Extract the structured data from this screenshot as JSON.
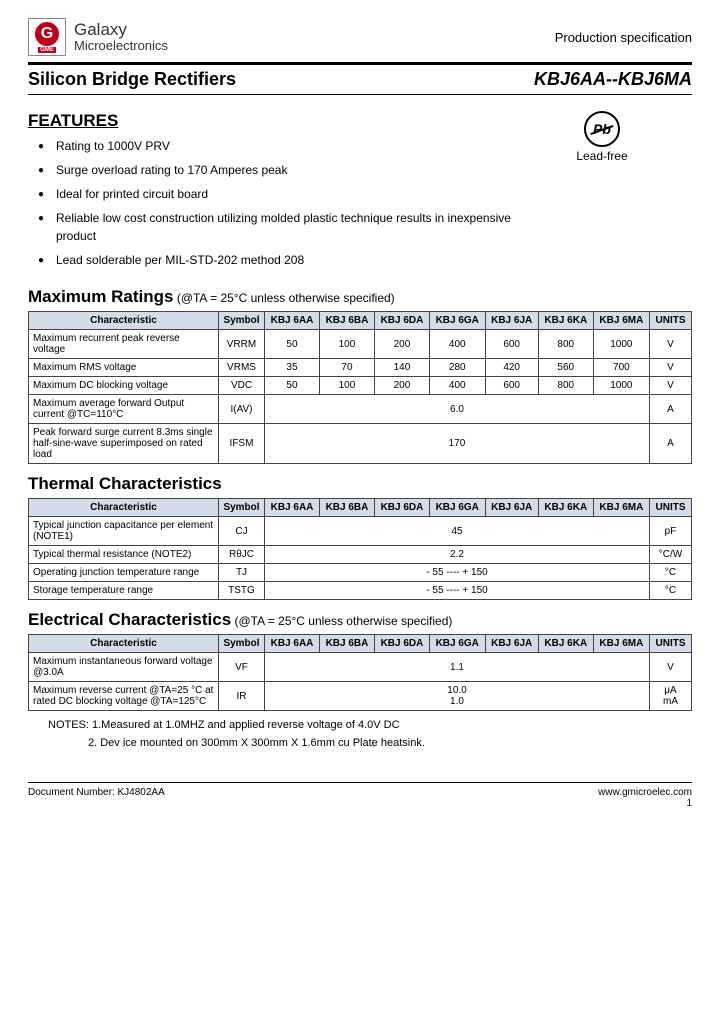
{
  "header": {
    "company_line1": "Galaxy",
    "company_line2": "Microelectronics",
    "logo_g": "G",
    "logo_sub": "GME",
    "prod_spec": "Production specification"
  },
  "title": {
    "left": "Silicon Bridge Rectifiers",
    "right": "KBJ6AA--KBJ6MA"
  },
  "features": {
    "heading": "FEATURES",
    "items": [
      "Rating to 1000V PRV",
      "Surge overload rating to 170 Amperes peak",
      "Ideal for printed circuit board",
      "Reliable low cost construction utilizing molded plastic technique results in inexpensive product",
      "Lead solderable per MIL-STD-202 method 208"
    ],
    "leadfree_label": "Lead-free",
    "pb_text": "Pb"
  },
  "maxratings": {
    "heading": "Maximum Ratings",
    "note": " (@TA = 25°C unless otherwise specified)",
    "col_char": "Characteristic",
    "col_sym": "Symbol",
    "cols": [
      "KBJ 6AA",
      "KBJ 6BA",
      "KBJ 6DA",
      "KBJ 6GA",
      "KBJ 6JA",
      "KBJ 6KA",
      "KBJ 6MA"
    ],
    "col_units": "UNITS",
    "rows": [
      {
        "char": "Maximum recurrent peak reverse voltage",
        "sym": "VRRM",
        "vals": [
          "50",
          "100",
          "200",
          "400",
          "600",
          "800",
          "1000"
        ],
        "unit": "V"
      },
      {
        "char": "Maximum RMS voltage",
        "sym": "VRMS",
        "vals": [
          "35",
          "70",
          "140",
          "280",
          "420",
          "560",
          "700"
        ],
        "unit": "V"
      },
      {
        "char": "Maximum DC blocking voltage",
        "sym": "VDC",
        "vals": [
          "50",
          "100",
          "200",
          "400",
          "600",
          "800",
          "1000"
        ],
        "unit": "V"
      },
      {
        "char": "Maximum average forward Output current @TC=110°C",
        "sym": "I(AV)",
        "span": "6.0",
        "unit": "A"
      },
      {
        "char": "Peak forward surge current 8.3ms single half-sine-wave superimposed on rated load",
        "sym": "IFSM",
        "span": "170",
        "unit": "A"
      }
    ]
  },
  "thermal": {
    "heading": "Thermal Characteristics",
    "rows": [
      {
        "char": "Typical junction capacitance per element (NOTE1)",
        "sym": "CJ",
        "span": "45",
        "unit": "pF"
      },
      {
        "char": "Typical thermal resistance (NOTE2)",
        "sym": "RθJC",
        "span": "2.2",
        "unit": "°C/W"
      },
      {
        "char": "Operating junction temperature range",
        "sym": "TJ",
        "span": "- 55 ---- + 150",
        "unit": "°C"
      },
      {
        "char": "Storage temperature range",
        "sym": "TSTG",
        "span": "- 55 ---- + 150",
        "unit": "°C"
      }
    ]
  },
  "electrical": {
    "heading": "Electrical Characteristics",
    "note": " (@TA = 25°C unless otherwise specified)",
    "rows": [
      {
        "char": "Maximum instantaneous forward voltage @3.0A",
        "sym": "VF",
        "span": "1.1",
        "unit": "V"
      },
      {
        "char": "Maximum reverse current @TA=25 °C at rated DC blocking voltage @TA=125°C",
        "sym": "IR",
        "span": "10.0",
        "unit": "μA",
        "span2": "1.0",
        "unit2": "mA"
      }
    ]
  },
  "notes": {
    "n1": "NOTES: 1.Measured at 1.0MHZ and applied reverse voltage of 4.0V DC",
    "n2": "2. Dev ice mounted on 300mm X 300mm X 1.6mm cu Plate heatsink."
  },
  "footer": {
    "doc": "Document Number: KJ4802AA",
    "url": "www.gmicroelec.com",
    "page": "1"
  },
  "style": {
    "header_bg": "#d3dce8",
    "logo_red": "#c00018",
    "border_color": "#444444"
  }
}
